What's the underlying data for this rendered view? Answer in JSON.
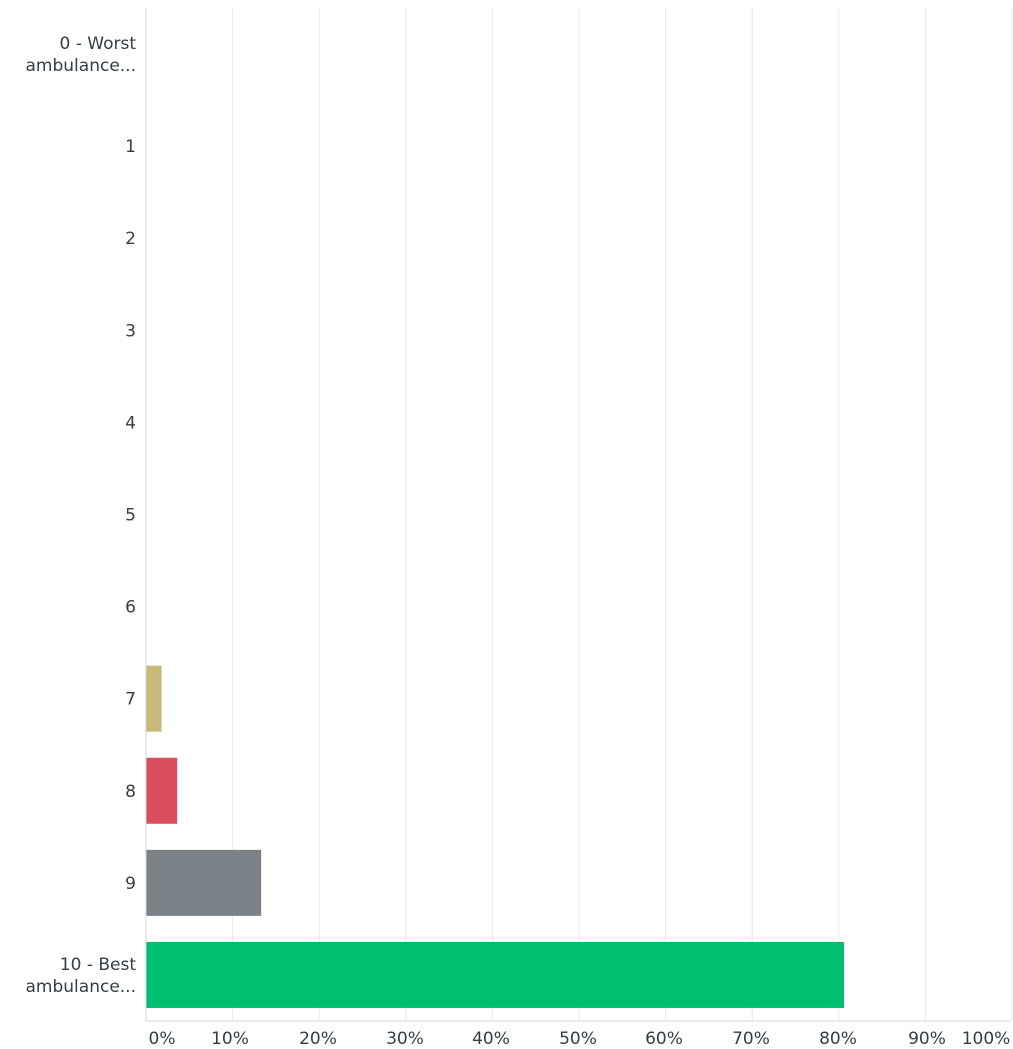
{
  "chart_data": {
    "type": "bar",
    "orientation": "horizontal",
    "categories": [
      [
        "0 - Worst",
        "ambulance..."
      ],
      [
        "1"
      ],
      [
        "2"
      ],
      [
        "3"
      ],
      [
        "4"
      ],
      [
        "5"
      ],
      [
        "6"
      ],
      [
        "7"
      ],
      [
        "8"
      ],
      [
        "9"
      ],
      [
        "10 - Best",
        "ambulance..."
      ]
    ],
    "values": [
      0,
      0,
      0,
      0,
      0,
      0,
      0,
      1.8,
      3.6,
      13.3,
      80.6
    ],
    "bar_colors": [
      "#00bf6f",
      "#507cb6",
      "#f05b24",
      "#6bc8cd",
      "#f9be00",
      "#ff8b4f",
      "#a66a9f",
      "#c9b879",
      "#d94e5c",
      "#7a8288",
      "#00bf6f"
    ],
    "xlim": [
      0,
      100
    ],
    "xticks": [
      "0%",
      "10%",
      "20%",
      "30%",
      "40%",
      "50%",
      "60%",
      "70%",
      "80%",
      "90%",
      "100%"
    ],
    "grid": true,
    "title": "",
    "xlabel": "",
    "ylabel": ""
  }
}
